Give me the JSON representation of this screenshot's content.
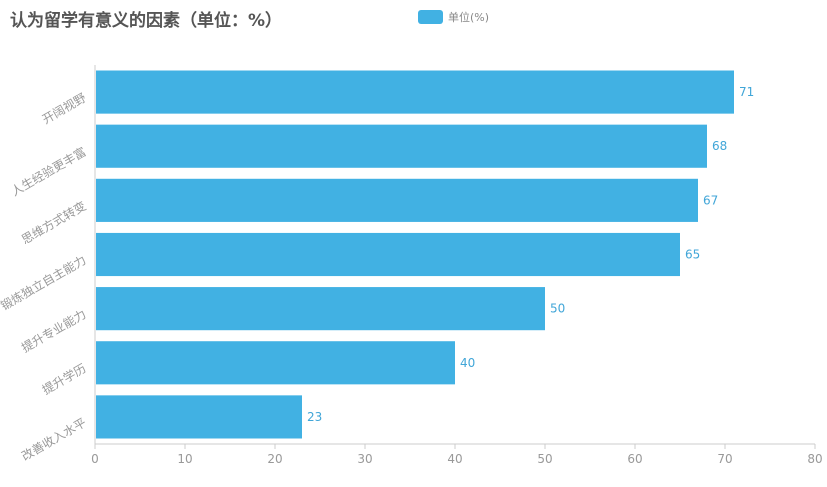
{
  "chart_data": {
    "type": "bar",
    "orientation": "horizontal",
    "title": "认为留学有意义的因素（单位：%）",
    "categories": [
      "开阔视野",
      "人生经验更丰富",
      "思维方式转变",
      "锻炼独立自主能力",
      "提升专业能力",
      "提升学历",
      "改善收入水平"
    ],
    "series": [
      {
        "name": "单位(%)",
        "values": [
          71,
          68,
          67,
          65,
          50,
          40,
          23
        ]
      }
    ],
    "xlim": [
      0,
      80
    ],
    "xticks": [
      0,
      10,
      20,
      30,
      40,
      50,
      60,
      70,
      80
    ],
    "grid": false,
    "legend": "top-center",
    "colors": {
      "bar": "#41b1e3",
      "label": "#41a6d8",
      "axis": "#ccc",
      "tick_text": "#999"
    }
  }
}
